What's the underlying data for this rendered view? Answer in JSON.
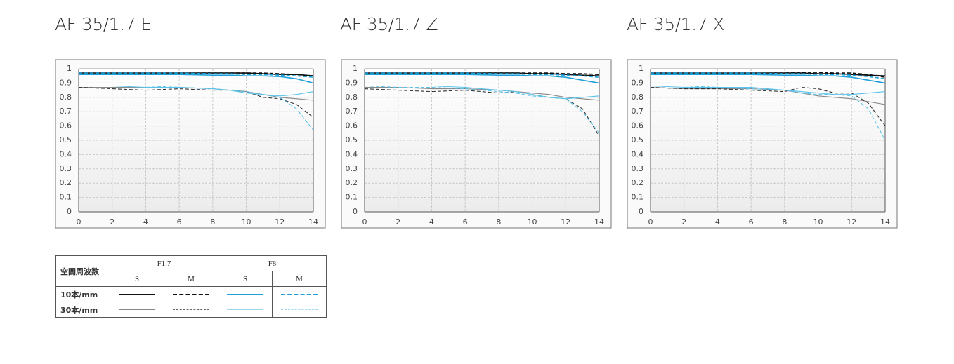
{
  "chart_data": [
    {
      "type": "line",
      "title": "AF 35/1.7 E",
      "x": [
        0,
        2,
        4,
        6,
        8,
        9,
        10,
        11,
        12,
        13,
        14
      ],
      "xlim": [
        0,
        14
      ],
      "ylim": [
        0,
        1
      ],
      "xticks": [
        0,
        2,
        4,
        6,
        8,
        10,
        12,
        14
      ],
      "yticks": [
        0,
        0.1,
        0.2,
        0.3,
        0.4,
        0.5,
        0.6,
        0.7,
        0.8,
        0.9,
        1
      ],
      "grid": true,
      "series": [
        {
          "color": "#111111",
          "dash": false,
          "values": [
            0.97,
            0.97,
            0.97,
            0.97,
            0.97,
            0.97,
            0.97,
            0.965,
            0.96,
            0.96,
            0.95
          ]
        },
        {
          "color": "#111111",
          "dash": true,
          "values": [
            0.97,
            0.97,
            0.97,
            0.97,
            0.97,
            0.97,
            0.97,
            0.97,
            0.965,
            0.96,
            0.95
          ]
        },
        {
          "color": "#1fa0d8",
          "dash": false,
          "values": [
            0.96,
            0.96,
            0.96,
            0.96,
            0.955,
            0.955,
            0.95,
            0.95,
            0.945,
            0.93,
            0.9
          ]
        },
        {
          "color": "#1fa0d8",
          "dash": true,
          "values": [
            0.97,
            0.97,
            0.97,
            0.97,
            0.965,
            0.965,
            0.96,
            0.96,
            0.955,
            0.95,
            0.94
          ]
        },
        {
          "color": "#888888",
          "dash": false,
          "values": [
            0.87,
            0.87,
            0.87,
            0.87,
            0.86,
            0.85,
            0.84,
            0.82,
            0.8,
            0.79,
            0.78
          ]
        },
        {
          "color": "#333333",
          "dash": true,
          "values": [
            0.87,
            0.86,
            0.85,
            0.86,
            0.85,
            0.85,
            0.84,
            0.8,
            0.79,
            0.75,
            0.66
          ]
        },
        {
          "color": "#5bc3ea",
          "dash": false,
          "values": [
            0.88,
            0.88,
            0.87,
            0.87,
            0.86,
            0.85,
            0.83,
            0.82,
            0.81,
            0.82,
            0.84
          ]
        },
        {
          "color": "#5bc3ea",
          "dash": true,
          "values": [
            0.88,
            0.88,
            0.88,
            0.87,
            0.86,
            0.85,
            0.84,
            0.82,
            0.8,
            0.72,
            0.57
          ]
        }
      ]
    },
    {
      "type": "line",
      "title": "AF 35/1.7 Z",
      "x": [
        0,
        2,
        4,
        6,
        8,
        9,
        10,
        11,
        12,
        13,
        14
      ],
      "xlim": [
        0,
        14
      ],
      "ylim": [
        0,
        1
      ],
      "xticks": [
        0,
        2,
        4,
        6,
        8,
        10,
        12,
        14
      ],
      "yticks": [
        0,
        0.1,
        0.2,
        0.3,
        0.4,
        0.5,
        0.6,
        0.7,
        0.8,
        0.9,
        1
      ],
      "grid": true,
      "series": [
        {
          "color": "#111111",
          "dash": false,
          "values": [
            0.97,
            0.97,
            0.97,
            0.97,
            0.97,
            0.97,
            0.965,
            0.965,
            0.96,
            0.955,
            0.95
          ]
        },
        {
          "color": "#111111",
          "dash": true,
          "values": [
            0.97,
            0.97,
            0.97,
            0.97,
            0.97,
            0.97,
            0.97,
            0.97,
            0.965,
            0.965,
            0.96
          ]
        },
        {
          "color": "#1fa0d8",
          "dash": false,
          "values": [
            0.96,
            0.96,
            0.96,
            0.96,
            0.955,
            0.955,
            0.95,
            0.95,
            0.94,
            0.92,
            0.9
          ]
        },
        {
          "color": "#1fa0d8",
          "dash": true,
          "values": [
            0.97,
            0.97,
            0.97,
            0.97,
            0.965,
            0.965,
            0.96,
            0.96,
            0.955,
            0.95,
            0.94
          ]
        },
        {
          "color": "#888888",
          "dash": false,
          "values": [
            0.87,
            0.87,
            0.86,
            0.86,
            0.85,
            0.84,
            0.83,
            0.82,
            0.8,
            0.79,
            0.78
          ]
        },
        {
          "color": "#333333",
          "dash": true,
          "values": [
            0.86,
            0.85,
            0.84,
            0.85,
            0.83,
            0.84,
            0.82,
            0.8,
            0.79,
            0.72,
            0.53
          ]
        },
        {
          "color": "#5bc3ea",
          "dash": false,
          "values": [
            0.88,
            0.88,
            0.88,
            0.87,
            0.85,
            0.84,
            0.82,
            0.8,
            0.79,
            0.8,
            0.81
          ]
        },
        {
          "color": "#5bc3ea",
          "dash": true,
          "values": [
            0.88,
            0.87,
            0.87,
            0.86,
            0.84,
            0.83,
            0.81,
            0.8,
            0.79,
            0.7,
            0.55
          ]
        }
      ]
    },
    {
      "type": "line",
      "title": "AF 35/1.7 X",
      "x": [
        0,
        2,
        4,
        6,
        8,
        9,
        10,
        11,
        12,
        13,
        14
      ],
      "xlim": [
        0,
        14
      ],
      "ylim": [
        0,
        1
      ],
      "xticks": [
        0,
        2,
        4,
        6,
        8,
        10,
        12,
        14
      ],
      "yticks": [
        0,
        0.1,
        0.2,
        0.3,
        0.4,
        0.5,
        0.6,
        0.7,
        0.8,
        0.9,
        1
      ],
      "grid": true,
      "series": [
        {
          "color": "#111111",
          "dash": false,
          "values": [
            0.97,
            0.97,
            0.97,
            0.97,
            0.97,
            0.97,
            0.965,
            0.965,
            0.96,
            0.955,
            0.95
          ]
        },
        {
          "color": "#111111",
          "dash": true,
          "values": [
            0.97,
            0.97,
            0.97,
            0.97,
            0.97,
            0.975,
            0.975,
            0.97,
            0.97,
            0.96,
            0.94
          ]
        },
        {
          "color": "#1fa0d8",
          "dash": false,
          "values": [
            0.96,
            0.96,
            0.96,
            0.96,
            0.955,
            0.955,
            0.95,
            0.95,
            0.94,
            0.92,
            0.9
          ]
        },
        {
          "color": "#1fa0d8",
          "dash": true,
          "values": [
            0.97,
            0.97,
            0.97,
            0.97,
            0.965,
            0.965,
            0.96,
            0.96,
            0.955,
            0.945,
            0.93
          ]
        },
        {
          "color": "#888888",
          "dash": false,
          "values": [
            0.87,
            0.86,
            0.86,
            0.86,
            0.85,
            0.83,
            0.81,
            0.8,
            0.79,
            0.77,
            0.75
          ]
        },
        {
          "color": "#333333",
          "dash": true,
          "values": [
            0.87,
            0.86,
            0.86,
            0.85,
            0.84,
            0.87,
            0.86,
            0.83,
            0.83,
            0.76,
            0.6
          ]
        },
        {
          "color": "#5bc3ea",
          "dash": false,
          "values": [
            0.88,
            0.87,
            0.87,
            0.87,
            0.85,
            0.84,
            0.83,
            0.82,
            0.82,
            0.83,
            0.84
          ]
        },
        {
          "color": "#5bc3ea",
          "dash": true,
          "values": [
            0.88,
            0.88,
            0.87,
            0.86,
            0.85,
            0.83,
            0.82,
            0.82,
            0.81,
            0.72,
            0.5
          ]
        }
      ]
    }
  ],
  "legend_table": {
    "header": "空間周波数",
    "apertures": [
      "F1.7",
      "F8"
    ],
    "types": [
      "S",
      "M",
      "S",
      "M"
    ],
    "rows": [
      "10本/mm",
      "30本/mm"
    ]
  }
}
